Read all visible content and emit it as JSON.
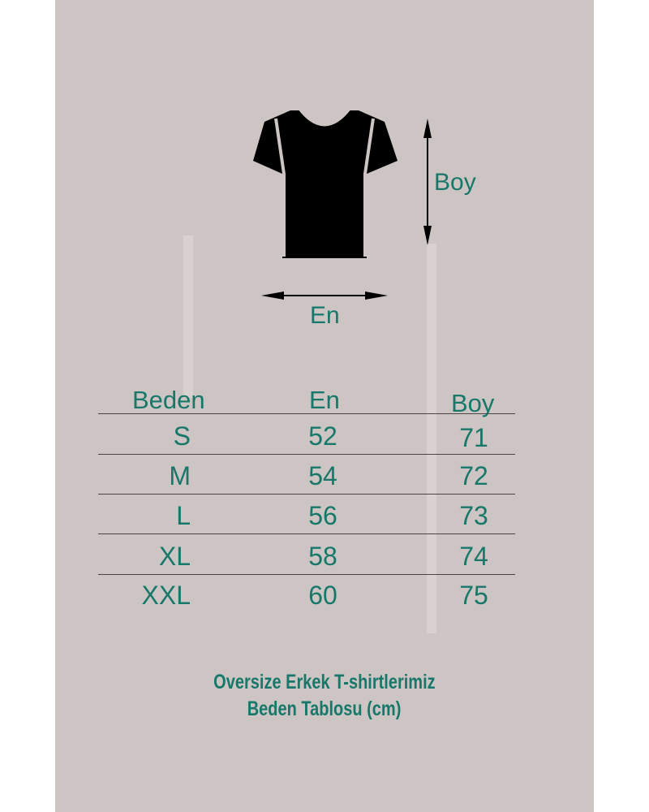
{
  "colors": {
    "panel": "#cdc5c4",
    "accent": "#17786a",
    "shirt": "#000000"
  },
  "diagram": {
    "height_label": "Boy",
    "width_label": "En",
    "icon": "tshirt-icon"
  },
  "table": {
    "headers": [
      "Beden",
      "En",
      "Boy"
    ],
    "rows": [
      {
        "size": "S",
        "en": "52",
        "boy": "71"
      },
      {
        "size": "M",
        "en": "54",
        "boy": "72"
      },
      {
        "size": "L",
        "en": "56",
        "boy": "73"
      },
      {
        "size": "XL",
        "en": "58",
        "boy": "74"
      },
      {
        "size": "XXL",
        "en": "60",
        "boy": "75"
      }
    ]
  },
  "footer": {
    "line1": "Oversize Erkek T-shirtlerimiz",
    "line2": "Beden Tablosu (cm)"
  }
}
